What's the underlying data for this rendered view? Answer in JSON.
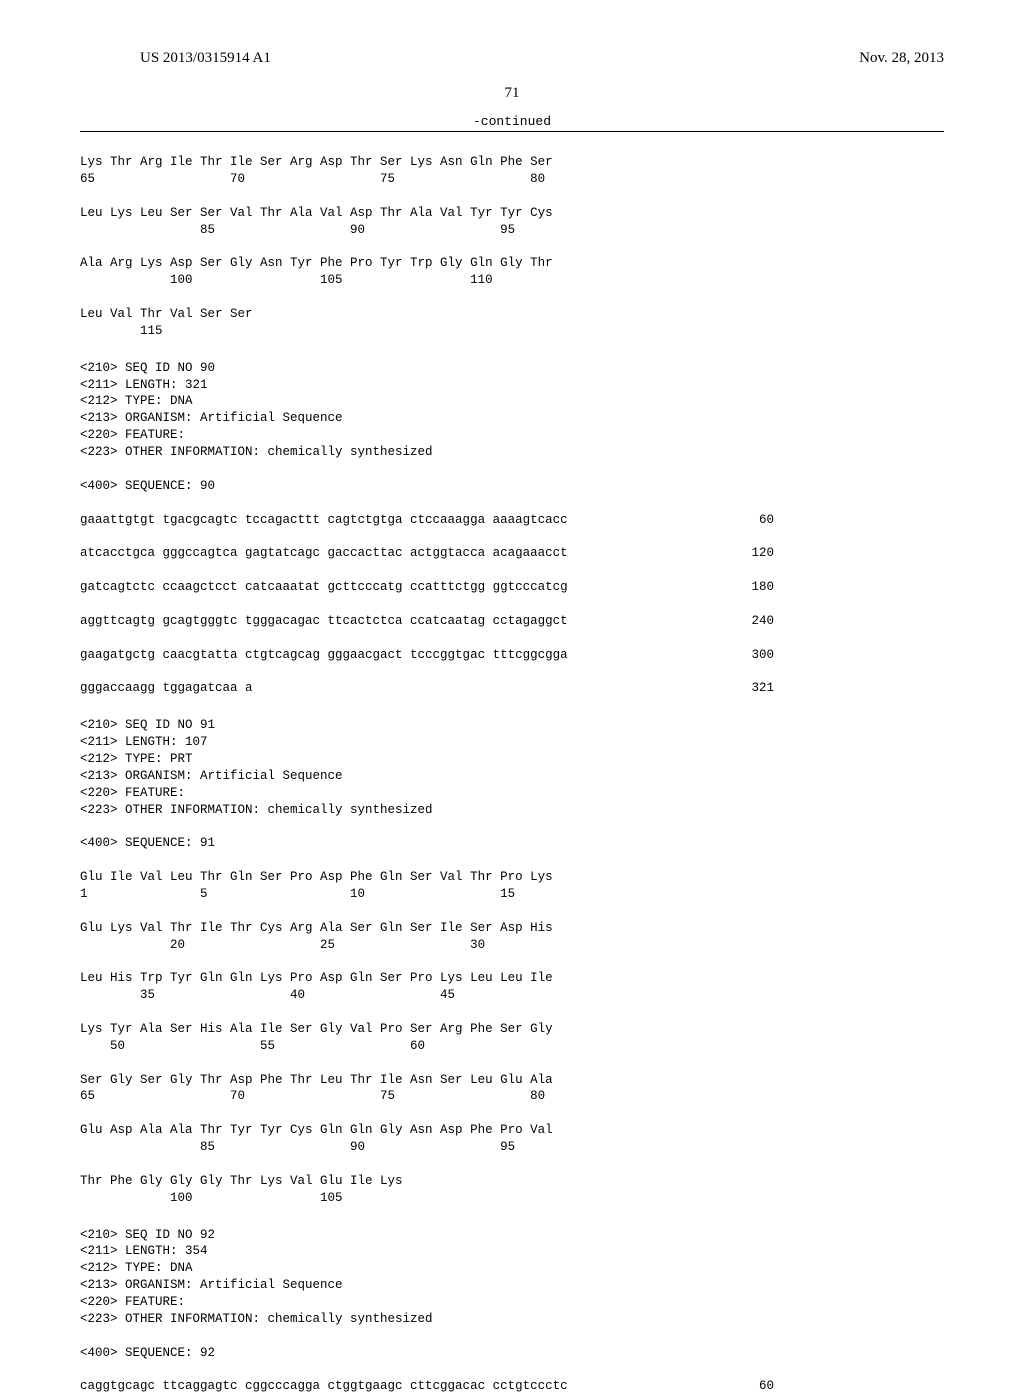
{
  "header": {
    "pub_no": "US 2013/0315914 A1",
    "date": "Nov. 28, 2013"
  },
  "page_number": "71",
  "continued_label": "-continued",
  "protein89": {
    "row1": "Lys Thr Arg Ile Thr Ile Ser Arg Asp Thr Ser Lys Asn Gln Phe Ser",
    "num1": "65                  70                  75                  80",
    "row2": "Leu Lys Leu Ser Ser Val Thr Ala Val Asp Thr Ala Val Tyr Tyr Cys",
    "num2": "                85                  90                  95",
    "row3": "Ala Arg Lys Asp Ser Gly Asn Tyr Phe Pro Tyr Trp Gly Gln Gly Thr",
    "num3": "            100                 105                 110",
    "row4": "Leu Val Thr Val Ser Ser",
    "num4": "        115"
  },
  "seq90": {
    "h1": "<210> SEQ ID NO 90",
    "h2": "<211> LENGTH: 321",
    "h3": "<212> TYPE: DNA",
    "h4": "<213> ORGANISM: Artificial Sequence",
    "h5": "<220> FEATURE:",
    "h6": "<223> OTHER INFORMATION: chemically synthesized",
    "h7": "<400> SEQUENCE: 90",
    "l1": "gaaattgtgt tgacgcagtc tccagacttt cagtctgtga ctccaaagga aaaagtcacc",
    "n1": "60",
    "l2": "atcacctgca gggccagtca gagtatcagc gaccacttac actggtacca acagaaacct",
    "n2": "120",
    "l3": "gatcagtctc ccaagctcct catcaaatat gcttcccatg ccatttctgg ggtcccatcg",
    "n3": "180",
    "l4": "aggttcagtg gcagtgggtc tgggacagac ttcactctca ccatcaatag cctagaggct",
    "n4": "240",
    "l5": "gaagatgctg caacgtatta ctgtcagcag gggaacgact tcccggtgac tttcggcgga",
    "n5": "300",
    "l6": "gggaccaagg tggagatcaa a",
    "n6": "321"
  },
  "seq91": {
    "h1": "<210> SEQ ID NO 91",
    "h2": "<211> LENGTH: 107",
    "h3": "<212> TYPE: PRT",
    "h4": "<213> ORGANISM: Artificial Sequence",
    "h5": "<220> FEATURE:",
    "h6": "<223> OTHER INFORMATION: chemically synthesized",
    "h7": "<400> SEQUENCE: 91",
    "r1": "Glu Ile Val Leu Thr Gln Ser Pro Asp Phe Gln Ser Val Thr Pro Lys",
    "p1": "1               5                   10                  15",
    "r2": "Glu Lys Val Thr Ile Thr Cys Arg Ala Ser Gln Ser Ile Ser Asp His",
    "p2": "            20                  25                  30",
    "r3": "Leu His Trp Tyr Gln Gln Lys Pro Asp Gln Ser Pro Lys Leu Leu Ile",
    "p3": "        35                  40                  45",
    "r4": "Lys Tyr Ala Ser His Ala Ile Ser Gly Val Pro Ser Arg Phe Ser Gly",
    "p4": "    50                  55                  60",
    "r5": "Ser Gly Ser Gly Thr Asp Phe Thr Leu Thr Ile Asn Ser Leu Glu Ala",
    "p5": "65                  70                  75                  80",
    "r6": "Glu Asp Ala Ala Thr Tyr Tyr Cys Gln Gln Gly Asn Asp Phe Pro Val",
    "p6": "                85                  90                  95",
    "r7": "Thr Phe Gly Gly Gly Thr Lys Val Glu Ile Lys",
    "p7": "            100                 105"
  },
  "seq92": {
    "h1": "<210> SEQ ID NO 92",
    "h2": "<211> LENGTH: 354",
    "h3": "<212> TYPE: DNA",
    "h4": "<213> ORGANISM: Artificial Sequence",
    "h5": "<220> FEATURE:",
    "h6": "<223> OTHER INFORMATION: chemically synthesized",
    "h7": "<400> SEQUENCE: 92",
    "l1": "caggtgcagc ttcaggagtc cggcccagga ctggtgaagc cttcggacac cctgtccctc",
    "n1": "60"
  }
}
